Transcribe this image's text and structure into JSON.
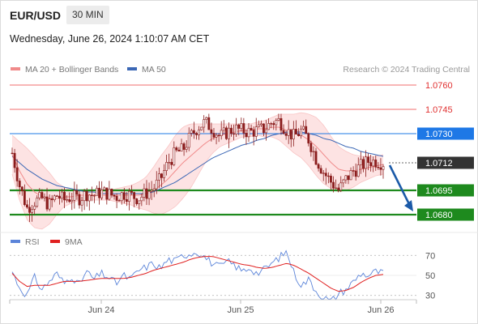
{
  "header": {
    "symbol": "EUR/USD",
    "timeframe": "30 MIN",
    "datetime": "Wednesday, June 26, 2024 1:10:07 AM CET"
  },
  "legend": {
    "ma20_label": "MA 20 + Bollinger Bands",
    "ma50_label": "MA 50",
    "credit": "Research © 2024 Trading Central"
  },
  "rsi_legend": {
    "rsi_label": "RSI",
    "ma9_label": "9MA"
  },
  "colors": {
    "ma20": "#f08a8a",
    "ma50": "#3b67b5",
    "band_fill": "#fde0e0",
    "candle": "#8a1c1c",
    "support": "#1e8a1e",
    "resistance": "#f26d6d",
    "pivot_blue": "#1e78e6",
    "current": "#333333",
    "arrow": "#1b5aa8",
    "rsi": "#5b84d9",
    "rsi_ma": "#e02020"
  },
  "chart_data": [
    {
      "type": "candlestick",
      "x_labels": [
        "Jun 24",
        "Jun 25",
        "Jun 26"
      ],
      "ylim": [
        1.067,
        1.0765
      ],
      "levels": [
        {
          "label": "1.0760",
          "value": 1.076,
          "role": "resistance"
        },
        {
          "label": "1.0745",
          "value": 1.0745,
          "role": "resistance"
        },
        {
          "label": "1.0730",
          "value": 1.073,
          "role": "pivot"
        },
        {
          "label": "1.0712",
          "value": 1.0712,
          "role": "current"
        },
        {
          "label": "1.0695",
          "value": 1.0695,
          "role": "support"
        },
        {
          "label": "1.0680",
          "value": 1.068,
          "role": "support"
        }
      ],
      "current_price": 1.0712,
      "close_path": [
        1.0718,
        1.0698,
        1.0684,
        1.0688,
        1.069,
        1.0686,
        1.0692,
        1.0689,
        1.0691,
        1.069,
        1.0693,
        1.0692,
        1.0694,
        1.0693,
        1.0691,
        1.0693,
        1.0692,
        1.069,
        1.0693,
        1.0696,
        1.0702,
        1.0712,
        1.0718,
        1.072,
        1.0728,
        1.0734,
        1.0737,
        1.0733,
        1.0728,
        1.0731,
        1.0733,
        1.0732,
        1.0731,
        1.0732,
        1.0733,
        1.0737,
        1.0738,
        1.0732,
        1.0728,
        1.0732,
        1.0726,
        1.0714,
        1.0706,
        1.07,
        1.0695,
        1.0702,
        1.0707,
        1.071,
        1.0713,
        1.0713,
        1.0712
      ],
      "ma20_path": [
        1.0717,
        1.0707,
        1.0699,
        1.0694,
        1.0691,
        1.069,
        1.069,
        1.0691,
        1.0691,
        1.0692,
        1.0692,
        1.0692,
        1.0692,
        1.0692,
        1.0692,
        1.0692,
        1.0692,
        1.0692,
        1.0693,
        1.0695,
        1.0698,
        1.0702,
        1.0707,
        1.0712,
        1.0716,
        1.072,
        1.0724,
        1.0727,
        1.0729,
        1.073,
        1.0731,
        1.0732,
        1.0732,
        1.0733,
        1.0733,
        1.0734,
        1.0734,
        1.0732,
        1.073,
        1.0729,
        1.0726,
        1.0722,
        1.0717,
        1.0712,
        1.0708,
        1.0707,
        1.0707,
        1.0708,
        1.0709,
        1.071,
        1.0711
      ],
      "band_width_path": [
        12,
        18,
        22,
        22,
        20,
        16,
        10,
        6,
        4,
        3,
        3,
        3,
        3,
        3,
        4,
        5,
        6,
        8,
        10,
        14,
        18,
        20,
        22,
        22,
        20,
        16,
        12,
        9,
        7,
        6,
        5,
        4,
        4,
        4,
        5,
        6,
        8,
        10,
        12,
        14,
        16,
        18,
        18,
        16,
        14,
        12,
        10,
        8,
        7,
        6,
        6
      ],
      "ma50_path": [
        1.0716,
        1.0712,
        1.0708,
        1.0705,
        1.0702,
        1.07,
        1.0698,
        1.0697,
        1.0696,
        1.0695,
        1.0694,
        1.0694,
        1.0693,
        1.0693,
        1.0693,
        1.0693,
        1.0693,
        1.0693,
        1.0693,
        1.0694,
        1.0696,
        1.0698,
        1.07,
        1.0703,
        1.0706,
        1.0709,
        1.0712,
        1.0715,
        1.0717,
        1.0719,
        1.0721,
        1.0723,
        1.0724,
        1.0726,
        1.0727,
        1.0729,
        1.073,
        1.0731,
        1.0731,
        1.0731,
        1.073,
        1.0729,
        1.0727,
        1.0726,
        1.0724,
        1.0722,
        1.0721,
        1.0719,
        1.0718,
        1.0717,
        1.0716
      ],
      "forecast": {
        "from": 1.0712,
        "to": 1.068
      }
    },
    {
      "type": "line",
      "name": "RSI",
      "ylim": [
        20,
        80
      ],
      "ticks": [
        {
          "label": "70",
          "value": 70
        },
        {
          "label": "50",
          "value": 50
        },
        {
          "label": "30",
          "value": 30
        }
      ],
      "rsi_path": [
        54,
        38,
        30,
        48,
        36,
        44,
        52,
        42,
        50,
        40,
        54,
        46,
        52,
        48,
        42,
        50,
        46,
        55,
        58,
        62,
        57,
        66,
        64,
        70,
        72,
        74,
        68,
        62,
        58,
        64,
        60,
        54,
        58,
        52,
        56,
        62,
        68,
        74,
        52,
        40,
        46,
        34,
        28,
        24,
        32,
        36,
        44,
        52,
        50,
        54,
        52
      ],
      "ma9_path": [
        52,
        44,
        39,
        40,
        40,
        40,
        42,
        44,
        44,
        44,
        45,
        46,
        47,
        47,
        47,
        47,
        48,
        50,
        52,
        55,
        57,
        59,
        61,
        63,
        66,
        68,
        69,
        69,
        67,
        65,
        63,
        61,
        60,
        58,
        57,
        58,
        60,
        62,
        60,
        56,
        52,
        47,
        42,
        37,
        34,
        35,
        38,
        43,
        47,
        50,
        51
      ]
    }
  ]
}
